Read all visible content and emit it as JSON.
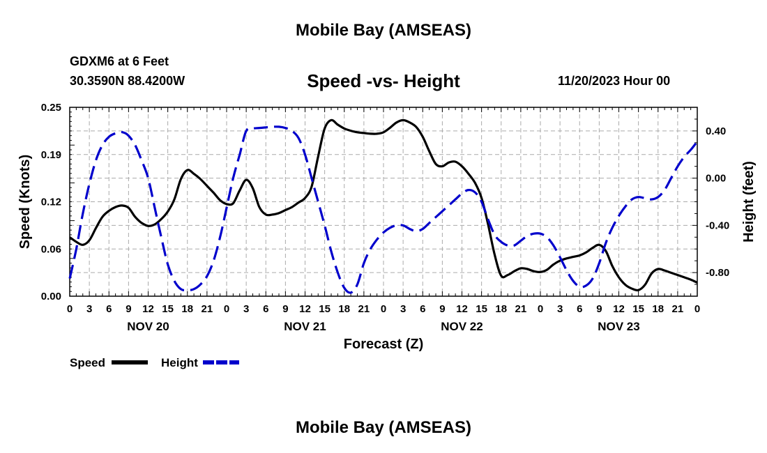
{
  "header": {
    "title": "Mobile Bay (AMSEAS)",
    "station": "GDXM6 at 6 Feet",
    "coordinates": "30.3590N  88.4200W",
    "subtitle": "Speed -vs- Height",
    "date": "11/20/2023 Hour 00"
  },
  "footer": {
    "title": "Mobile Bay (AMSEAS)"
  },
  "chart_data": {
    "type": "line",
    "title": "Speed -vs- Height",
    "xlabel": "Forecast (Z)",
    "ylabel": "Speed (Knots)",
    "y2label": "Height (feet)",
    "xlim": [
      0,
      96
    ],
    "ylim": [
      0,
      0.25
    ],
    "y2lim": [
      -1.0,
      0.6
    ],
    "x_tick_labels": [
      "0",
      "3",
      "6",
      "9",
      "12",
      "15",
      "18",
      "21",
      "0",
      "3",
      "6",
      "9",
      "12",
      "15",
      "18",
      "21",
      "0",
      "3",
      "6",
      "9",
      "12",
      "15",
      "18",
      "21",
      "0",
      "3",
      "6",
      "9",
      "12",
      "15",
      "18",
      "21",
      "0"
    ],
    "day_labels": [
      {
        "x": 12,
        "label": "NOV 20"
      },
      {
        "x": 36,
        "label": "NOV 21"
      },
      {
        "x": 60,
        "label": "NOV 22"
      },
      {
        "x": 84,
        "label": "NOV 23"
      }
    ],
    "y_ticks": [
      {
        "value": 0.0,
        "label": "0.00"
      },
      {
        "value": 0.0625,
        "label": "0.06"
      },
      {
        "value": 0.125,
        "label": "0.12"
      },
      {
        "value": 0.1875,
        "label": "0.19"
      },
      {
        "value": 0.25,
        "label": "0.25"
      }
    ],
    "y2_ticks": [
      {
        "value": 0.4,
        "label": "0.40"
      },
      {
        "value": 0.0,
        "label": "0.00"
      },
      {
        "value": -0.4,
        "label": "-0.40"
      },
      {
        "value": -0.8,
        "label": "-0.80"
      }
    ],
    "grid": true,
    "legend_position": "bottom-left",
    "series": [
      {
        "name": "Speed",
        "axis": "left",
        "color": "#000000",
        "style": "solid",
        "points": [
          [
            0,
            0.078
          ],
          [
            1,
            0.072
          ],
          [
            2,
            0.068
          ],
          [
            3,
            0.074
          ],
          [
            4,
            0.09
          ],
          [
            5,
            0.105
          ],
          [
            6,
            0.113
          ],
          [
            7,
            0.118
          ],
          [
            8,
            0.12
          ],
          [
            9,
            0.117
          ],
          [
            10,
            0.105
          ],
          [
            11,
            0.097
          ],
          [
            12,
            0.093
          ],
          [
            13,
            0.095
          ],
          [
            14,
            0.102
          ],
          [
            15,
            0.112
          ],
          [
            16,
            0.128
          ],
          [
            17,
            0.155
          ],
          [
            18,
            0.167
          ],
          [
            19,
            0.162
          ],
          [
            20,
            0.155
          ],
          [
            21,
            0.146
          ],
          [
            22,
            0.137
          ],
          [
            23,
            0.127
          ],
          [
            24,
            0.122
          ],
          [
            25,
            0.123
          ],
          [
            26,
            0.14
          ],
          [
            27,
            0.154
          ],
          [
            28,
            0.143
          ],
          [
            29,
            0.118
          ],
          [
            30,
            0.108
          ],
          [
            31,
            0.108
          ],
          [
            32,
            0.11
          ],
          [
            33,
            0.114
          ],
          [
            34,
            0.118
          ],
          [
            35,
            0.124
          ],
          [
            36,
            0.13
          ],
          [
            37,
            0.145
          ],
          [
            38,
            0.185
          ],
          [
            39,
            0.222
          ],
          [
            40,
            0.233
          ],
          [
            41,
            0.227
          ],
          [
            42,
            0.222
          ],
          [
            43,
            0.219
          ],
          [
            44,
            0.217
          ],
          [
            45,
            0.216
          ],
          [
            46,
            0.215
          ],
          [
            47,
            0.215
          ],
          [
            48,
            0.217
          ],
          [
            49,
            0.223
          ],
          [
            50,
            0.23
          ],
          [
            51,
            0.233
          ],
          [
            52,
            0.23
          ],
          [
            53,
            0.224
          ],
          [
            54,
            0.211
          ],
          [
            55,
            0.192
          ],
          [
            56,
            0.175
          ],
          [
            57,
            0.172
          ],
          [
            58,
            0.177
          ],
          [
            59,
            0.178
          ],
          [
            60,
            0.172
          ],
          [
            61,
            0.162
          ],
          [
            62,
            0.15
          ],
          [
            63,
            0.13
          ],
          [
            64,
            0.095
          ],
          [
            65,
            0.055
          ],
          [
            66,
            0.027
          ],
          [
            67,
            0.028
          ],
          [
            68,
            0.033
          ],
          [
            69,
            0.037
          ],
          [
            70,
            0.036
          ],
          [
            71,
            0.033
          ],
          [
            72,
            0.032
          ],
          [
            73,
            0.035
          ],
          [
            74,
            0.042
          ],
          [
            75,
            0.047
          ],
          [
            76,
            0.05
          ],
          [
            77,
            0.052
          ],
          [
            78,
            0.054
          ],
          [
            79,
            0.058
          ],
          [
            80,
            0.064
          ],
          [
            81,
            0.068
          ],
          [
            82,
            0.06
          ],
          [
            83,
            0.04
          ],
          [
            84,
            0.025
          ],
          [
            85,
            0.015
          ],
          [
            86,
            0.01
          ],
          [
            87,
            0.008
          ],
          [
            88,
            0.015
          ],
          [
            89,
            0.03
          ],
          [
            90,
            0.036
          ],
          [
            91,
            0.034
          ],
          [
            92,
            0.031
          ],
          [
            93,
            0.028
          ],
          [
            94,
            0.025
          ],
          [
            95,
            0.022
          ],
          [
            96,
            0.018
          ]
        ]
      },
      {
        "name": "Height",
        "axis": "right",
        "color": "#0000cc",
        "style": "dashed",
        "points": [
          [
            0,
            -0.85
          ],
          [
            1,
            -0.6
          ],
          [
            2,
            -0.3
          ],
          [
            3,
            -0.05
          ],
          [
            4,
            0.15
          ],
          [
            5,
            0.28
          ],
          [
            6,
            0.35
          ],
          [
            7,
            0.38
          ],
          [
            8,
            0.39
          ],
          [
            9,
            0.36
          ],
          [
            10,
            0.28
          ],
          [
            11,
            0.15
          ],
          [
            12,
            0.0
          ],
          [
            13,
            -0.25
          ],
          [
            14,
            -0.5
          ],
          [
            15,
            -0.73
          ],
          [
            16,
            -0.87
          ],
          [
            17,
            -0.94
          ],
          [
            18,
            -0.95
          ],
          [
            19,
            -0.94
          ],
          [
            20,
            -0.9
          ],
          [
            21,
            -0.83
          ],
          [
            22,
            -0.7
          ],
          [
            23,
            -0.5
          ],
          [
            24,
            -0.25
          ],
          [
            25,
            0.0
          ],
          [
            26,
            0.2
          ],
          [
            27,
            0.4
          ],
          [
            28,
            0.42
          ],
          [
            29,
            0.425
          ],
          [
            30,
            0.43
          ],
          [
            31,
            0.435
          ],
          [
            32,
            0.435
          ],
          [
            33,
            0.425
          ],
          [
            34,
            0.4
          ],
          [
            35,
            0.34
          ],
          [
            36,
            0.2
          ],
          [
            37,
            0.0
          ],
          [
            38,
            -0.2
          ],
          [
            39,
            -0.4
          ],
          [
            40,
            -0.62
          ],
          [
            41,
            -0.8
          ],
          [
            42,
            -0.93
          ],
          [
            43,
            -0.97
          ],
          [
            44,
            -0.9
          ],
          [
            45,
            -0.72
          ],
          [
            46,
            -0.6
          ],
          [
            47,
            -0.52
          ],
          [
            48,
            -0.46
          ],
          [
            49,
            -0.42
          ],
          [
            50,
            -0.4
          ],
          [
            51,
            -0.4
          ],
          [
            52,
            -0.43
          ],
          [
            53,
            -0.45
          ],
          [
            54,
            -0.43
          ],
          [
            55,
            -0.38
          ],
          [
            56,
            -0.33
          ],
          [
            57,
            -0.28
          ],
          [
            58,
            -0.23
          ],
          [
            59,
            -0.18
          ],
          [
            60,
            -0.13
          ],
          [
            61,
            -0.1
          ],
          [
            62,
            -0.12
          ],
          [
            63,
            -0.2
          ],
          [
            64,
            -0.35
          ],
          [
            65,
            -0.48
          ],
          [
            66,
            -0.54
          ],
          [
            67,
            -0.57
          ],
          [
            68,
            -0.57
          ],
          [
            69,
            -0.53
          ],
          [
            70,
            -0.49
          ],
          [
            71,
            -0.47
          ],
          [
            72,
            -0.47
          ],
          [
            73,
            -0.5
          ],
          [
            74,
            -0.57
          ],
          [
            75,
            -0.67
          ],
          [
            76,
            -0.78
          ],
          [
            77,
            -0.87
          ],
          [
            78,
            -0.92
          ],
          [
            79,
            -0.91
          ],
          [
            80,
            -0.85
          ],
          [
            81,
            -0.72
          ],
          [
            82,
            -0.55
          ],
          [
            83,
            -0.42
          ],
          [
            84,
            -0.32
          ],
          [
            85,
            -0.24
          ],
          [
            86,
            -0.18
          ],
          [
            87,
            -0.16
          ],
          [
            88,
            -0.17
          ],
          [
            89,
            -0.18
          ],
          [
            90,
            -0.16
          ],
          [
            91,
            -0.1
          ],
          [
            92,
            0.0
          ],
          [
            93,
            0.1
          ],
          [
            94,
            0.18
          ],
          [
            95,
            0.24
          ],
          [
            96,
            0.31
          ]
        ]
      }
    ]
  }
}
